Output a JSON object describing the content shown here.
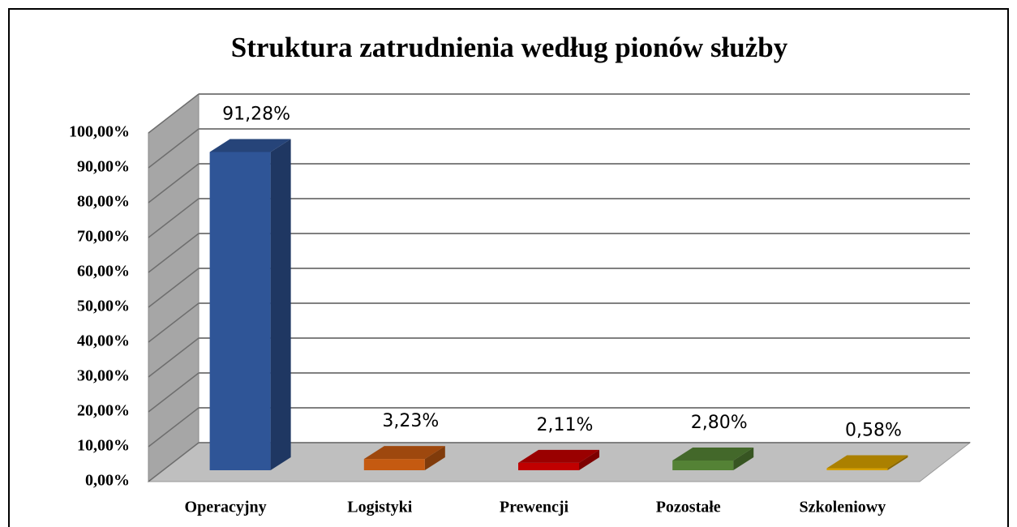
{
  "chart_data": {
    "type": "bar3d",
    "title": "Struktura zatrudnienia według pionów służby",
    "categories": [
      "Operacyjny",
      "Logistyki",
      "Prewencji",
      "Pozostałe",
      "Szkoleniowy"
    ],
    "values": [
      91.28,
      3.23,
      2.11,
      2.8,
      0.58
    ],
    "value_labels": [
      "91,28%",
      "3,23%",
      "2,11%",
      "2,80%",
      "0,58%"
    ],
    "colors": [
      "#2f5597",
      "#c55a11",
      "#c00000",
      "#548235",
      "#d6a000"
    ],
    "ylim": [
      0,
      100
    ],
    "yticks": [
      {
        "value": 0,
        "label": "0,00%"
      },
      {
        "value": 10,
        "label": "10,00%"
      },
      {
        "value": 20,
        "label": "20,00%"
      },
      {
        "value": 30,
        "label": "30,00%"
      },
      {
        "value": 40,
        "label": "40,00%"
      },
      {
        "value": 50,
        "label": "50,00%"
      },
      {
        "value": 60,
        "label": "60,00%"
      },
      {
        "value": 70,
        "label": "70,00%"
      },
      {
        "value": 80,
        "label": "80,00%"
      },
      {
        "value": 90,
        "label": "90,00%"
      },
      {
        "value": 100,
        "label": "100,00%"
      }
    ],
    "grid": true
  }
}
